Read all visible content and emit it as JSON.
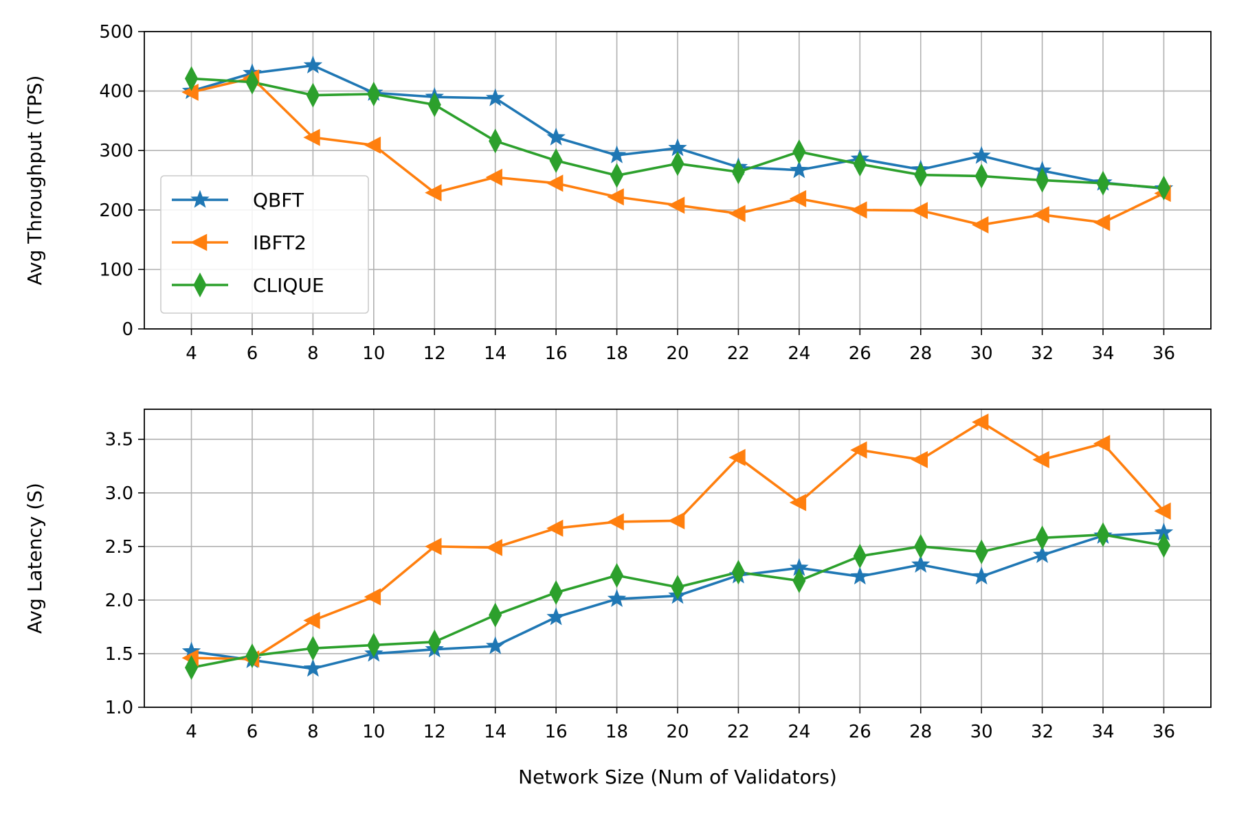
{
  "chart_data": [
    {
      "type": "line",
      "panel": "top",
      "xlabel": "",
      "ylabel": "Avg Throughput (TPS)",
      "x": [
        4,
        6,
        8,
        10,
        12,
        14,
        16,
        18,
        20,
        22,
        24,
        26,
        28,
        30,
        32,
        34,
        36
      ],
      "xticks": [
        "4",
        "6",
        "8",
        "10",
        "12",
        "14",
        "16",
        "18",
        "20",
        "22",
        "24",
        "26",
        "28",
        "30",
        "32",
        "34",
        "36"
      ],
      "ylim": [
        0,
        500
      ],
      "yticks": [
        "0",
        "100",
        "200",
        "300",
        "400",
        "500"
      ],
      "ytick_values": [
        0,
        100,
        200,
        300,
        400,
        500
      ],
      "grid": true,
      "legend": "center-left",
      "series": [
        {
          "name": "QBFT",
          "color": "#1f77b4",
          "marker": "star",
          "values": [
            400,
            430,
            443,
            397,
            390,
            388,
            322,
            292,
            304,
            272,
            267,
            286,
            268,
            291,
            266,
            246,
            236
          ]
        },
        {
          "name": "IBFT2",
          "color": "#ff7f0e",
          "marker": "triangle-left",
          "values": [
            398,
            422,
            322,
            309,
            229,
            255,
            245,
            222,
            208,
            194,
            219,
            200,
            199,
            175,
            192,
            179,
            228
          ]
        },
        {
          "name": "CLIQUE",
          "color": "#2ca02c",
          "marker": "thin-diamond",
          "values": [
            421,
            415,
            393,
            395,
            377,
            316,
            283,
            258,
            278,
            264,
            298,
            277,
            259,
            257,
            250,
            245,
            237
          ]
        }
      ]
    },
    {
      "type": "line",
      "panel": "bottom",
      "xlabel": "Network Size (Num of Validators)",
      "ylabel": "Avg Latency (S)",
      "x": [
        4,
        6,
        8,
        10,
        12,
        14,
        16,
        18,
        20,
        22,
        24,
        26,
        28,
        30,
        32,
        34,
        36
      ],
      "xticks": [
        "4",
        "6",
        "8",
        "10",
        "12",
        "14",
        "16",
        "18",
        "20",
        "22",
        "24",
        "26",
        "28",
        "30",
        "32",
        "34",
        "36"
      ],
      "ylim": [
        1.0,
        3.78
      ],
      "yticks": [
        "1.0",
        "1.5",
        "2.0",
        "2.5",
        "3.0",
        "3.5"
      ],
      "ytick_values": [
        1.0,
        1.5,
        2.0,
        2.5,
        3.0,
        3.5
      ],
      "grid": true,
      "legend": "none",
      "series": [
        {
          "name": "QBFT",
          "color": "#1f77b4",
          "marker": "star",
          "values": [
            1.52,
            1.44,
            1.36,
            1.5,
            1.54,
            1.57,
            1.84,
            2.01,
            2.04,
            2.23,
            2.3,
            2.22,
            2.33,
            2.22,
            2.42,
            2.6,
            2.63
          ]
        },
        {
          "name": "IBFT2",
          "color": "#ff7f0e",
          "marker": "triangle-left",
          "values": [
            1.46,
            1.45,
            1.81,
            2.03,
            2.5,
            2.49,
            2.67,
            2.73,
            2.74,
            3.33,
            2.91,
            3.4,
            3.31,
            3.66,
            3.31,
            3.46,
            2.83
          ]
        },
        {
          "name": "CLIQUE",
          "color": "#2ca02c",
          "marker": "thin-diamond",
          "values": [
            1.37,
            1.48,
            1.55,
            1.58,
            1.61,
            1.86,
            2.07,
            2.23,
            2.12,
            2.26,
            2.18,
            2.41,
            2.5,
            2.45,
            2.58,
            2.61,
            2.51
          ]
        }
      ]
    }
  ]
}
